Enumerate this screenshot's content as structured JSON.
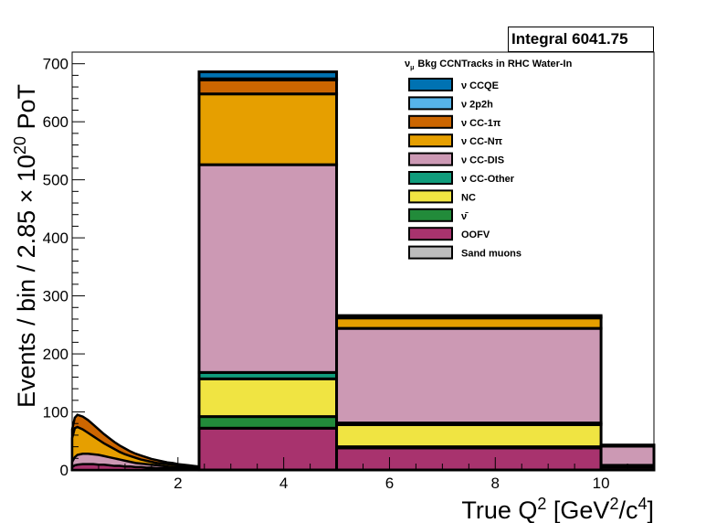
{
  "stats_box": "Integral 6041.75",
  "chart_data": {
    "type": "bar",
    "stacked": true,
    "title": "ν_μ Bkg CCNTracks in RHC Water-In",
    "title_parts": {
      "nu": "ν",
      "sub": "μ",
      "rest": "Bkg CCNTracks in RHC Water-In"
    },
    "xlabel": "True Q² [GeV²/c⁴]",
    "xlabel_parts": {
      "a": "True Q",
      "sup1": "2",
      "b": " [GeV",
      "sup2": "2",
      "c": "/c",
      "sup3": "4",
      "d": "]"
    },
    "ylabel": "Events / bin / 2.85 × 10²⁰ PoT",
    "ylabel_parts": {
      "a": "Events / bin / 2.85 × 10",
      "sup": "20",
      "b": " PoT"
    },
    "xlim": [
      0,
      11
    ],
    "ylim": [
      0,
      720
    ],
    "x_ticks": [
      2,
      4,
      6,
      8,
      10
    ],
    "y_ticks": [
      0,
      100,
      200,
      300,
      400,
      500,
      600,
      700
    ],
    "bins": [
      [
        2.4,
        5.0
      ],
      [
        5.0,
        10.0
      ],
      [
        10.0,
        11.0
      ]
    ],
    "series": [
      {
        "name": "OOFV",
        "legend": "OOFV",
        "color": "#a8336e",
        "values": [
          72,
          38,
          5
        ]
      },
      {
        "name": "ν̄",
        "legend": "ν̄",
        "color": "#228b3a",
        "values": [
          20,
          2,
          1
        ]
      },
      {
        "name": "NC",
        "legend": "NC",
        "color": "#f0e442",
        "values": [
          65,
          38,
          2
        ]
      },
      {
        "name": "ν CC-Other",
        "legend": "ν CC-Other",
        "color": "#109c7c",
        "values": [
          11,
          3,
          0
        ]
      },
      {
        "name": "ν CC-DIS",
        "legend": "ν CC-DIS",
        "color": "#cc99b4",
        "values": [
          358,
          163,
          33
        ]
      },
      {
        "name": "ν CC-Nπ",
        "legend": "ν CC-Nπ",
        "color": "#e69f00",
        "values": [
          122,
          18,
          2
        ]
      },
      {
        "name": "ν CC-1π",
        "legend": "ν CC-1π",
        "color": "#cc6600",
        "values": [
          24,
          2,
          0
        ]
      },
      {
        "name": "ν 2p2h",
        "legend": "ν 2p2h",
        "color": "#56b4e9",
        "values": [
          2,
          0,
          0
        ]
      },
      {
        "name": "ν CCQE",
        "legend": "ν CCQE",
        "color": "#0072b2",
        "values": [
          12,
          2,
          0
        ]
      },
      {
        "name": "Sand muons",
        "legend": "Sand muons",
        "color": "#bdbdbd",
        "values": [
          0,
          0,
          0
        ]
      }
    ],
    "legend_order": [
      "ν CCQE",
      "ν 2p2h",
      "ν CC-1π",
      "ν CC-Nπ",
      "ν CC-DIS",
      "ν CC-Other",
      "NC",
      "ν̄",
      "OOFV",
      "Sand muons"
    ],
    "low_q2_region": {
      "x": [
        0.0,
        0.05,
        0.1,
        0.2,
        0.3,
        0.4,
        0.5,
        0.6,
        0.7,
        0.8,
        0.9,
        1.0,
        1.1,
        1.2,
        1.3,
        1.4,
        1.5,
        1.6,
        1.7,
        1.8,
        1.9,
        2.0,
        2.1,
        2.2,
        2.3,
        2.4
      ],
      "total": [
        70,
        90,
        95,
        92,
        86,
        78,
        70,
        62,
        55,
        48,
        42,
        37,
        32,
        28,
        25,
        22,
        19,
        17,
        15,
        13,
        12,
        10,
        9,
        8,
        7,
        6
      ],
      "cc1pi_top": [
        55,
        72,
        74,
        70,
        64,
        58,
        52,
        46,
        41,
        36,
        31,
        27,
        24,
        21,
        18,
        16,
        14,
        12,
        11,
        10,
        9,
        8,
        7,
        6,
        5,
        5
      ],
      "ccdis_top": [
        14,
        22,
        26,
        28,
        28,
        27,
        26,
        24,
        22,
        20,
        18,
        16,
        14,
        12,
        11,
        10,
        9,
        8,
        7,
        6,
        5,
        5,
        4,
        4,
        3,
        3
      ],
      "oofv_top": [
        5,
        8,
        9,
        10,
        10,
        10,
        9,
        9,
        8,
        7,
        7,
        6,
        6,
        5,
        5,
        4,
        4,
        3,
        3,
        3,
        2,
        2,
        2,
        2,
        2,
        1
      ]
    },
    "grid": false,
    "legend_position": "top-right"
  }
}
